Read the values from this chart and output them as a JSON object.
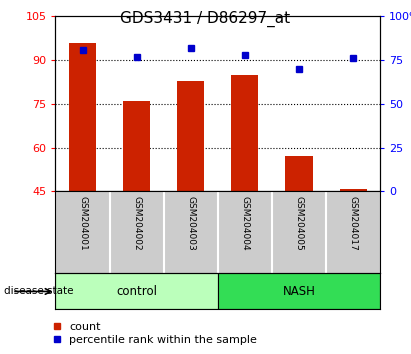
{
  "title": "GDS3431 / D86297_at",
  "samples": [
    "GSM204001",
    "GSM204002",
    "GSM204003",
    "GSM204004",
    "GSM204005",
    "GSM204017"
  ],
  "bar_values": [
    96,
    76,
    83,
    85,
    57,
    46
  ],
  "percentile_values": [
    81,
    77,
    82,
    78,
    70,
    76
  ],
  "bar_baseline": 45,
  "ylim_left": [
    45,
    105
  ],
  "ylim_right": [
    0,
    100
  ],
  "yticks_left": [
    45,
    60,
    75,
    90,
    105
  ],
  "yticks_right": [
    0,
    25,
    50,
    75,
    100
  ],
  "bar_color": "#cc2200",
  "dot_color": "#0000cc",
  "grid_lines": [
    60,
    75,
    90
  ],
  "group_labels": [
    "control",
    "NASH"
  ],
  "group_ranges": [
    [
      0,
      3
    ],
    [
      3,
      6
    ]
  ],
  "group_color_control": "#bbffbb",
  "group_color_nash": "#33dd55",
  "disease_state_label": "disease state",
  "legend_items": [
    "count",
    "percentile rank within the sample"
  ],
  "bar_width": 0.5,
  "label_bg_color": "#cccccc",
  "title_fontsize": 11,
  "label_fontsize": 6.5,
  "legend_fontsize": 8
}
